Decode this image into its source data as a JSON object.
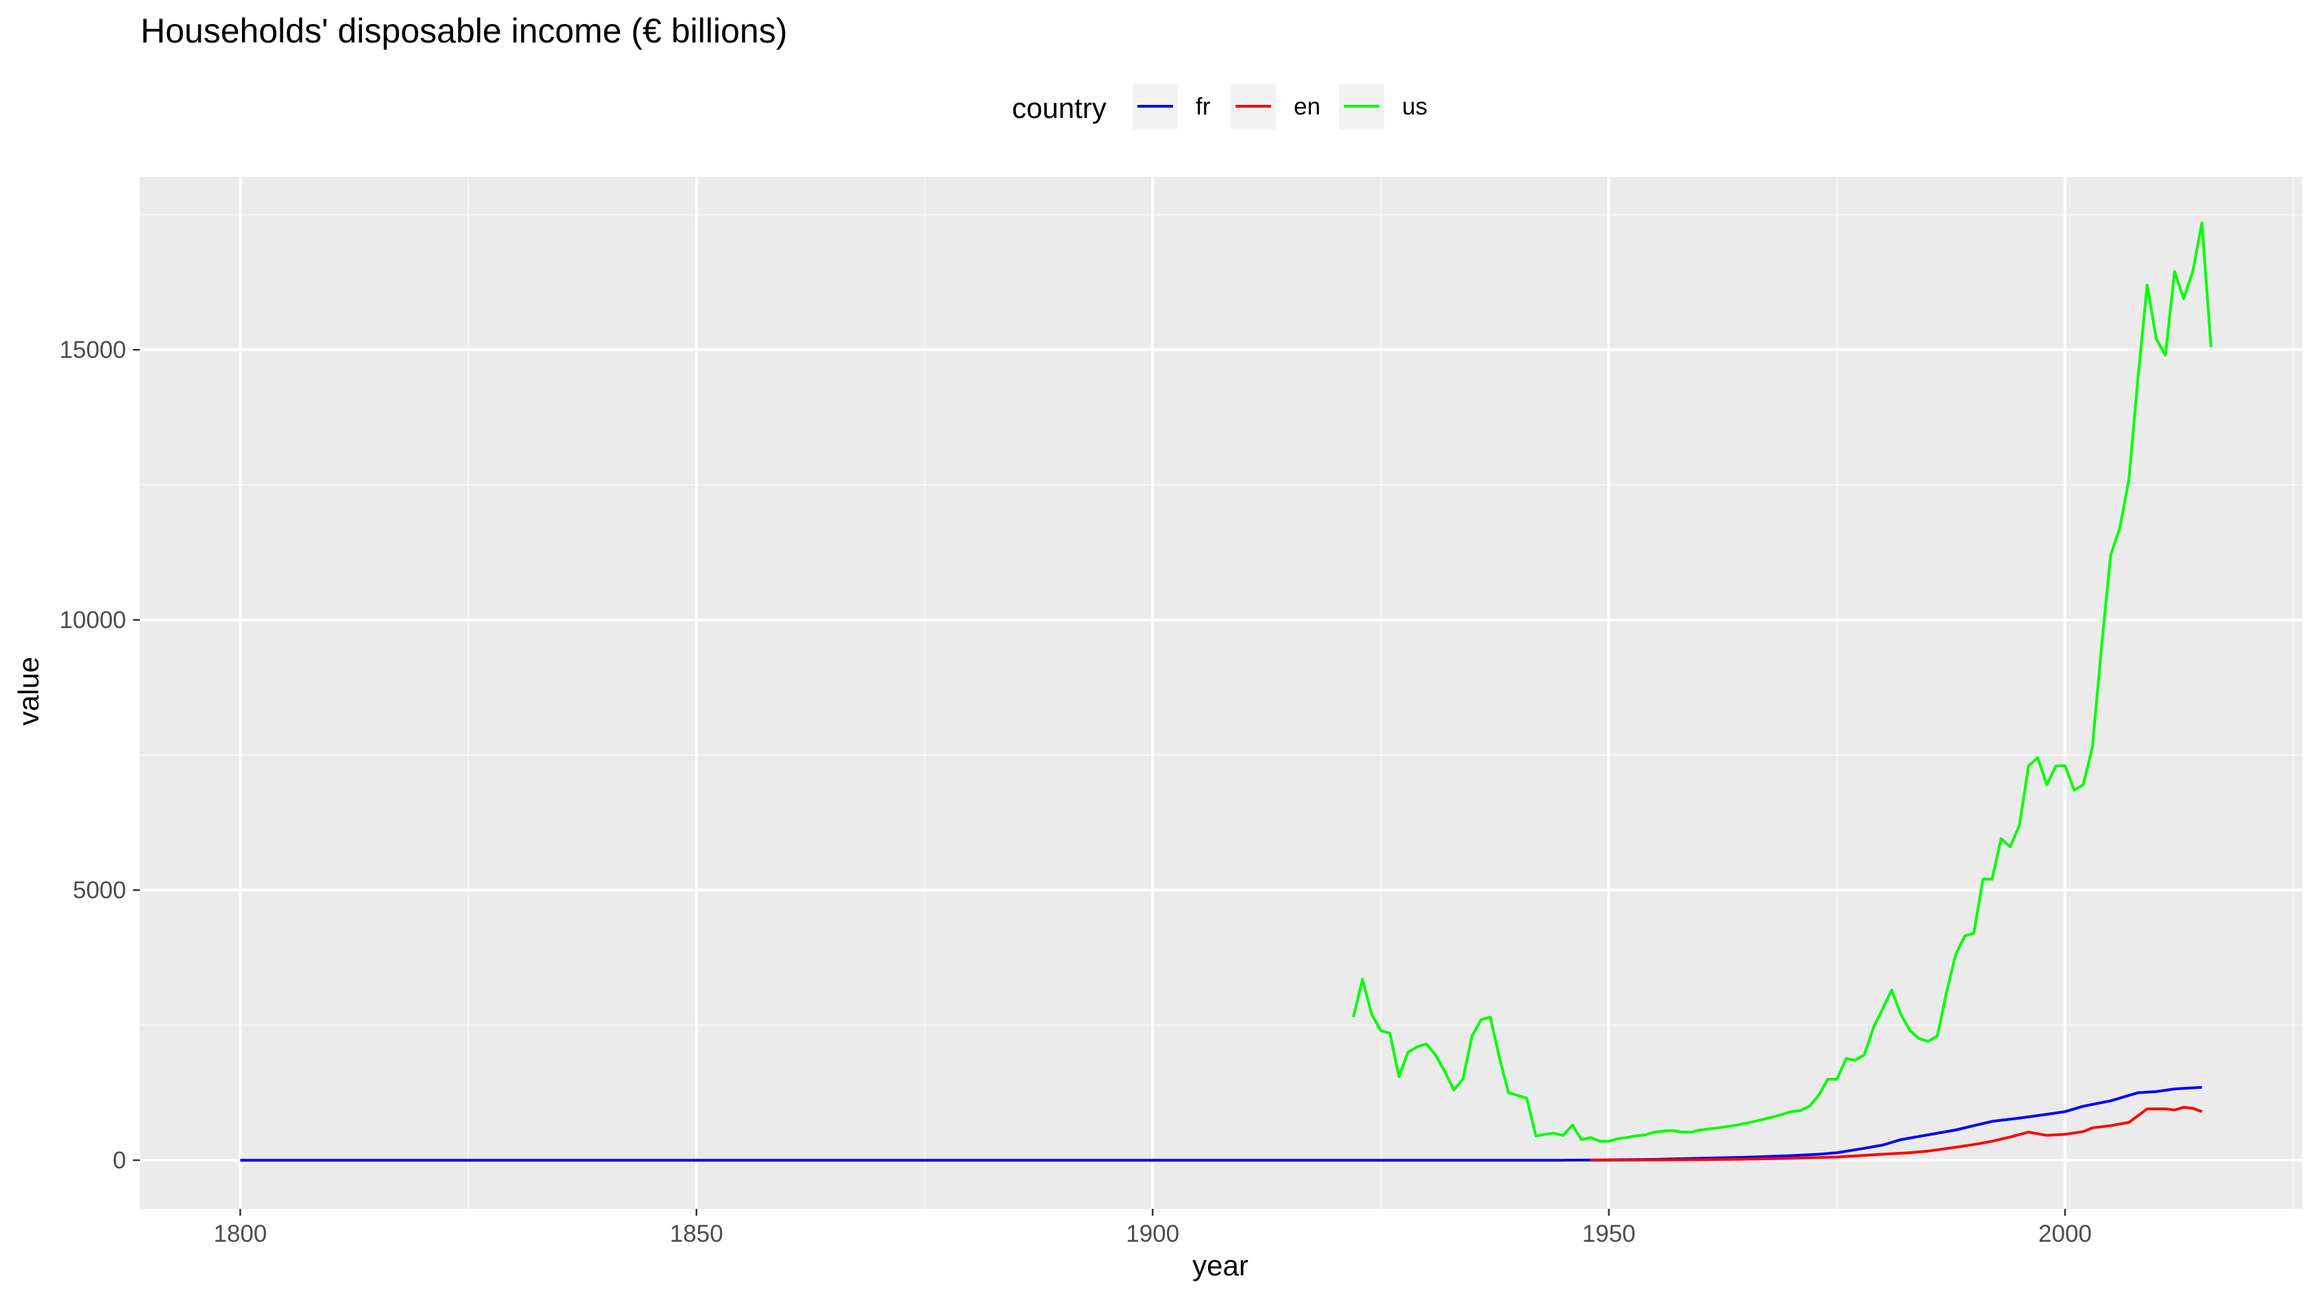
{
  "chart_data": {
    "type": "line",
    "title": "Households' disposable income (€ billions)",
    "xlabel": "year",
    "ylabel": "value",
    "xlim": [
      1789,
      2026
    ],
    "ylim": [
      -900,
      18200
    ],
    "x_ticks": [
      1800,
      1850,
      1900,
      1950,
      2000
    ],
    "y_ticks": [
      0,
      5000,
      10000,
      15000
    ],
    "grid": true,
    "legend": {
      "title": "country",
      "placement": "top",
      "entries": [
        "fr",
        "en",
        "us"
      ]
    },
    "series": [
      {
        "name": "fr",
        "color": "#0000ff",
        "points": [
          [
            1800,
            0
          ],
          [
            1850,
            0
          ],
          [
            1900,
            0
          ],
          [
            1945,
            0
          ],
          [
            1949,
            5
          ],
          [
            1955,
            15
          ],
          [
            1960,
            35
          ],
          [
            1965,
            55
          ],
          [
            1970,
            85
          ],
          [
            1973,
            110
          ],
          [
            1975,
            140
          ],
          [
            1978,
            220
          ],
          [
            1980,
            280
          ],
          [
            1982,
            380
          ],
          [
            1985,
            470
          ],
          [
            1988,
            560
          ],
          [
            1990,
            640
          ],
          [
            1992,
            720
          ],
          [
            1995,
            780
          ],
          [
            1998,
            850
          ],
          [
            2000,
            900
          ],
          [
            2002,
            1000
          ],
          [
            2005,
            1100
          ],
          [
            2008,
            1250
          ],
          [
            2010,
            1270
          ],
          [
            2012,
            1320
          ],
          [
            2014,
            1340
          ],
          [
            2015,
            1350
          ]
        ]
      },
      {
        "name": "en",
        "color": "#ff0000",
        "points": [
          [
            1948,
            0
          ],
          [
            1955,
            5
          ],
          [
            1960,
            10
          ],
          [
            1965,
            20
          ],
          [
            1970,
            35
          ],
          [
            1975,
            60
          ],
          [
            1980,
            110
          ],
          [
            1983,
            140
          ],
          [
            1985,
            170
          ],
          [
            1988,
            240
          ],
          [
            1990,
            290
          ],
          [
            1992,
            350
          ],
          [
            1994,
            430
          ],
          [
            1996,
            520
          ],
          [
            1998,
            460
          ],
          [
            2000,
            480
          ],
          [
            2002,
            530
          ],
          [
            2003,
            600
          ],
          [
            2005,
            640
          ],
          [
            2007,
            700
          ],
          [
            2009,
            950
          ],
          [
            2011,
            950
          ],
          [
            2012,
            930
          ],
          [
            2013,
            980
          ],
          [
            2014,
            960
          ],
          [
            2015,
            900
          ]
        ]
      },
      {
        "name": "us",
        "color": "#00ff00",
        "points": [
          [
            1922,
            2650
          ],
          [
            1923,
            3350
          ],
          [
            1924,
            2700
          ],
          [
            1925,
            2400
          ],
          [
            1926,
            2350
          ],
          [
            1927,
            1550
          ],
          [
            1928,
            2000
          ],
          [
            1929,
            2100
          ],
          [
            1930,
            2150
          ],
          [
            1931,
            1950
          ],
          [
            1932,
            1650
          ],
          [
            1933,
            1300
          ],
          [
            1934,
            1500
          ],
          [
            1935,
            2300
          ],
          [
            1936,
            2600
          ],
          [
            1937,
            2650
          ],
          [
            1938,
            1900
          ],
          [
            1939,
            1250
          ],
          [
            1940,
            1200
          ],
          [
            1941,
            1150
          ],
          [
            1942,
            450
          ],
          [
            1943,
            480
          ],
          [
            1944,
            500
          ],
          [
            1945,
            460
          ],
          [
            1946,
            650
          ],
          [
            1947,
            380
          ],
          [
            1948,
            420
          ],
          [
            1949,
            350
          ],
          [
            1950,
            350
          ],
          [
            1951,
            400
          ],
          [
            1952,
            420
          ],
          [
            1953,
            450
          ],
          [
            1954,
            470
          ],
          [
            1955,
            520
          ],
          [
            1956,
            540
          ],
          [
            1957,
            550
          ],
          [
            1958,
            520
          ],
          [
            1959,
            520
          ],
          [
            1960,
            560
          ],
          [
            1962,
            600
          ],
          [
            1964,
            650
          ],
          [
            1966,
            720
          ],
          [
            1968,
            800
          ],
          [
            1970,
            900
          ],
          [
            1971,
            920
          ],
          [
            1972,
            1000
          ],
          [
            1973,
            1200
          ],
          [
            1974,
            1500
          ],
          [
            1975,
            1500
          ],
          [
            1976,
            1880
          ],
          [
            1977,
            1850
          ],
          [
            1978,
            1950
          ],
          [
            1979,
            2450
          ],
          [
            1980,
            2800
          ],
          [
            1981,
            3150
          ],
          [
            1982,
            2700
          ],
          [
            1983,
            2400
          ],
          [
            1984,
            2250
          ],
          [
            1985,
            2200
          ],
          [
            1986,
            2300
          ],
          [
            1987,
            3100
          ],
          [
            1988,
            3800
          ],
          [
            1989,
            4150
          ],
          [
            1990,
            4200
          ],
          [
            1991,
            5200
          ],
          [
            1992,
            5200
          ],
          [
            1993,
            5950
          ],
          [
            1994,
            5800
          ],
          [
            1995,
            6200
          ],
          [
            1996,
            7300
          ],
          [
            1997,
            7450
          ],
          [
            1998,
            6950
          ],
          [
            1999,
            7300
          ],
          [
            2000,
            7300
          ],
          [
            2001,
            6850
          ],
          [
            2002,
            6950
          ],
          [
            2003,
            7650
          ],
          [
            2004,
            9500
          ],
          [
            2005,
            11200
          ],
          [
            2006,
            11700
          ],
          [
            2007,
            12600
          ],
          [
            2008,
            14500
          ],
          [
            2009,
            16200
          ],
          [
            2010,
            15200
          ],
          [
            2011,
            14900
          ],
          [
            2012,
            16450
          ],
          [
            2013,
            15950
          ],
          [
            2014,
            16450
          ],
          [
            2015,
            17350
          ],
          [
            2016,
            15050
          ]
        ]
      }
    ]
  }
}
